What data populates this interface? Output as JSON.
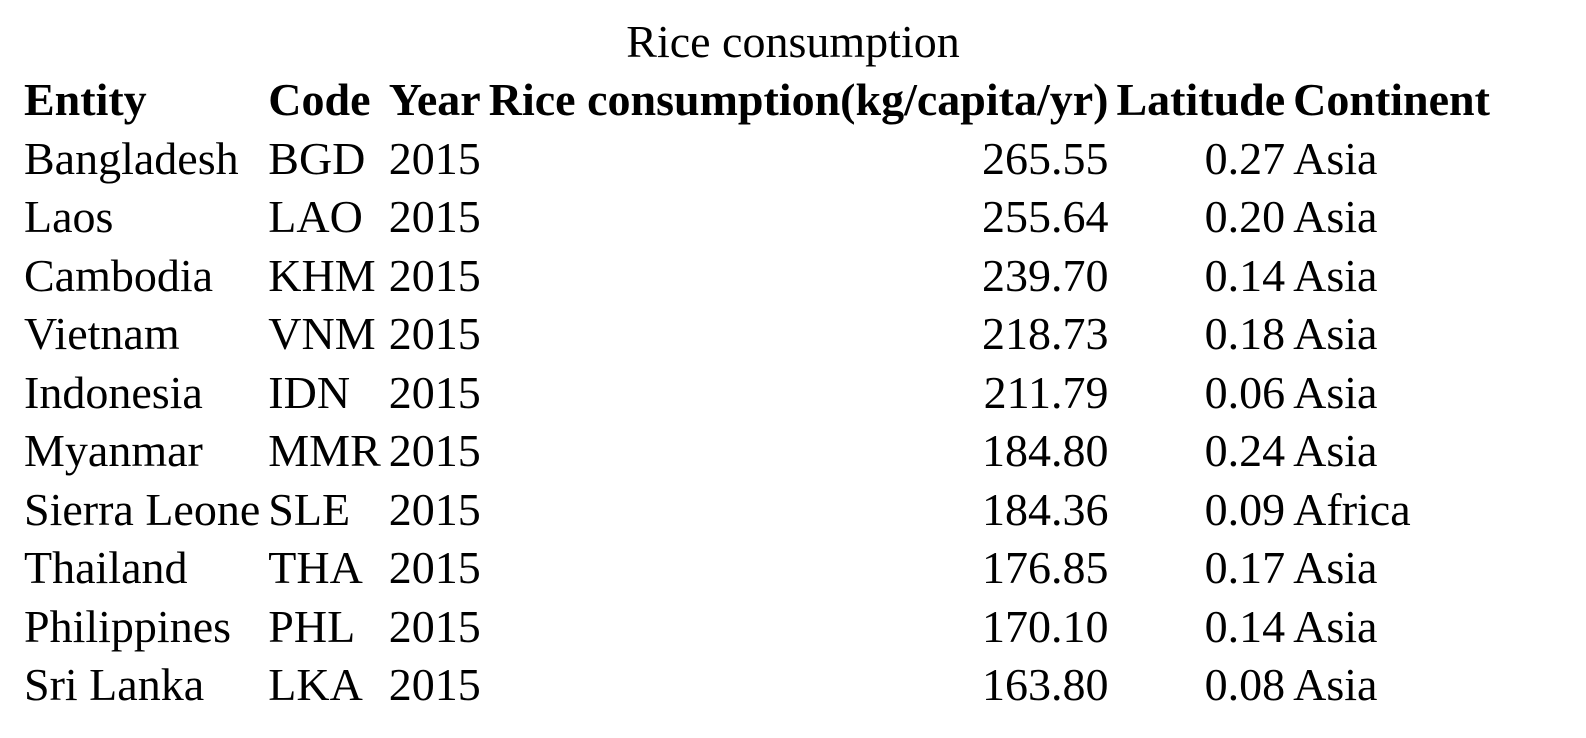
{
  "chart_data": {
    "type": "table",
    "title": "Rice consumption",
    "columns": [
      "Entity",
      "Code",
      "Year",
      "Rice consumption(kg/capita/yr)",
      "Latitude",
      "Continent"
    ],
    "rows": [
      [
        "Bangladesh",
        "BGD",
        "2015",
        "265.55",
        "0.27",
        "Asia"
      ],
      [
        "Laos",
        "LAO",
        "2015",
        "255.64",
        "0.20",
        "Asia"
      ],
      [
        "Cambodia",
        "KHM",
        "2015",
        "239.70",
        "0.14",
        "Asia"
      ],
      [
        "Vietnam",
        "VNM",
        "2015",
        "218.73",
        "0.18",
        "Asia"
      ],
      [
        "Indonesia",
        "IDN",
        "2015",
        "211.79",
        "0.06",
        "Asia"
      ],
      [
        "Myanmar",
        "MMR",
        "2015",
        "184.80",
        "0.24",
        "Asia"
      ],
      [
        "Sierra Leone",
        "SLE",
        "2015",
        "184.36",
        "0.09",
        "Africa"
      ],
      [
        "Thailand",
        "THA",
        "2015",
        "176.85",
        "0.17",
        "Asia"
      ],
      [
        "Philippines",
        "PHL",
        "2015",
        "170.10",
        "0.14",
        "Asia"
      ],
      [
        "Sri Lanka",
        "LKA",
        "2015",
        "163.80",
        "0.08",
        "Asia"
      ]
    ]
  }
}
